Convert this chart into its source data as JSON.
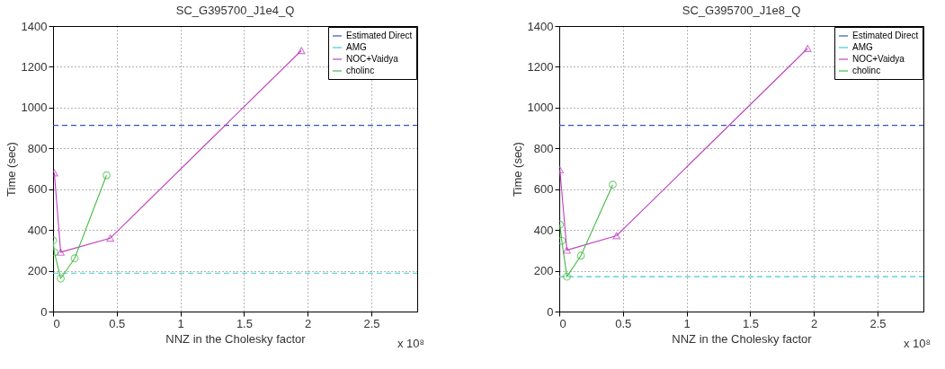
{
  "chart_data": [
    {
      "type": "line",
      "title": "SC_G395700_J1e4_Q",
      "xlabel": "NNZ in the Cholesky factor",
      "ylabel": "Time (sec)",
      "annotations": [
        "x 10⁸"
      ],
      "xlim": [
        0,
        2.86
      ],
      "xticks": [
        0,
        0.5,
        1,
        1.5,
        2,
        2.5
      ],
      "ylim": [
        0,
        1400
      ],
      "yticks": [
        0,
        200,
        400,
        600,
        800,
        1000,
        1200,
        1400
      ],
      "grid": true,
      "legend": "top right",
      "series": [
        {
          "name": "Estimated Direct",
          "color": "#3355bb",
          "line_style": "dashed",
          "marker": "none",
          "x": [
            0,
            2.86
          ],
          "values": [
            913,
            913
          ]
        },
        {
          "name": "AMG",
          "color": "#44cccc",
          "line_style": "dashed",
          "marker": "none",
          "x": [
            0,
            2.86
          ],
          "values": [
            188,
            188
          ]
        },
        {
          "name": "NOC+Vaidya",
          "color": "#c040c0",
          "line_style": "solid",
          "marker": "triangle",
          "x": [
            0.01,
            0.06,
            0.45,
            1.95
          ],
          "values": [
            680,
            291,
            360,
            1280
          ]
        },
        {
          "name": "cholinc",
          "color": "#44bb44",
          "line_style": "solid",
          "marker": "circle",
          "x": [
            0,
            0.01,
            0.06,
            0.17,
            0.42
          ],
          "values": [
            349,
            291,
            162,
            261,
            668
          ]
        }
      ]
    },
    {
      "type": "line",
      "title": "SC_G395700_J1e8_Q",
      "xlabel": "NNZ in the Cholesky factor",
      "ylabel": "Time (sec)",
      "annotations": [
        "x 10⁸"
      ],
      "xlim": [
        0,
        2.86
      ],
      "xticks": [
        0,
        0.5,
        1,
        1.5,
        2,
        2.5
      ],
      "ylim": [
        0,
        1400
      ],
      "yticks": [
        0,
        200,
        400,
        600,
        800,
        1000,
        1200,
        1400
      ],
      "grid": true,
      "legend": "top right",
      "series": [
        {
          "name": "Estimated Direct",
          "color": "#3355bb",
          "line_style": "dashed",
          "marker": "none",
          "x": [
            0,
            2.86
          ],
          "values": [
            913,
            913
          ]
        },
        {
          "name": "AMG",
          "color": "#44cccc",
          "line_style": "dashed",
          "marker": "none",
          "x": [
            0,
            2.86
          ],
          "values": [
            171,
            171
          ]
        },
        {
          "name": "NOC+Vaidya",
          "color": "#c040c0",
          "line_style": "solid",
          "marker": "triangle",
          "x": [
            0.005,
            0.06,
            0.45,
            1.95
          ],
          "values": [
            695,
            301,
            372,
            1290
          ]
        },
        {
          "name": "cholinc",
          "color": "#44bb44",
          "line_style": "solid",
          "marker": "circle",
          "x": [
            0.005,
            0.02,
            0.06,
            0.17,
            0.42
          ],
          "values": [
            426,
            347,
            171,
            274,
            622
          ]
        }
      ]
    }
  ]
}
